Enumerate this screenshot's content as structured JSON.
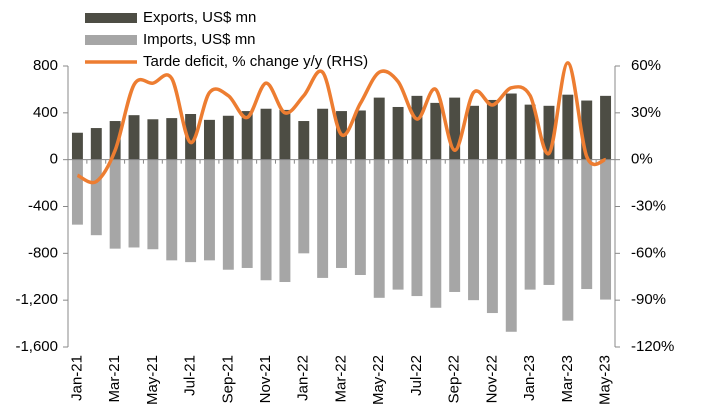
{
  "chart_data": {
    "type": "bar_line",
    "categories": [
      "Jan-21",
      null,
      "Mar-21",
      null,
      "May-21",
      null,
      "Jul-21",
      null,
      "Sep-21",
      null,
      "Nov-21",
      null,
      "Jan-22",
      null,
      "Mar-22",
      null,
      "May-22",
      null,
      "Jul-22",
      null,
      "Sep-22",
      null,
      "Nov-22",
      null,
      "Jan-23",
      null,
      "Mar-23",
      null,
      "May-23"
    ],
    "series": [
      {
        "name": "Exports, US$ mn",
        "color": "#4d4d44",
        "type": "bar",
        "values": [
          230,
          270,
          330,
          380,
          345,
          355,
          390,
          340,
          375,
          415,
          435,
          425,
          330,
          435,
          415,
          420,
          530,
          450,
          545,
          485,
          530,
          460,
          510,
          565,
          470,
          460,
          555,
          505,
          545
        ]
      },
      {
        "name": "Imports, US$ mn",
        "color": "#a6a6a6",
        "type": "bar",
        "values": [
          -555,
          -645,
          -760,
          -750,
          -765,
          -860,
          -875,
          -860,
          -940,
          -925,
          -1030,
          -1045,
          -800,
          -1010,
          -925,
          -985,
          -1180,
          -1110,
          -1165,
          -1265,
          -1130,
          -1200,
          -1310,
          -1470,
          -1110,
          -1070,
          -1375,
          -1105,
          -1195
        ]
      },
      {
        "name": "Tarde deficit, % change y/y (RHS)",
        "color": "#ed7d31",
        "type": "line",
        "axis": "y2",
        "values": [
          -10,
          -14,
          6,
          48,
          49,
          52,
          11,
          43,
          41,
          27,
          49,
          30,
          41,
          56,
          16,
          36,
          56,
          50,
          26,
          45,
          6,
          43,
          35,
          46,
          41,
          4,
          62,
          2,
          0
        ]
      }
    ],
    "ylim": [
      -1600,
      800
    ],
    "yticks": [
      {
        "value": -1600,
        "label": "-1,600"
      },
      {
        "value": -1200,
        "label": "-1,200"
      },
      -800,
      -400,
      0,
      400,
      800
    ],
    "y2lim": [
      -120,
      60
    ],
    "y2ticks": [
      {
        "value": -120,
        "label": "-120%"
      },
      {
        "value": -90,
        "label": "-90%"
      },
      {
        "value": -60,
        "label": "-60%"
      },
      {
        "value": -30,
        "label": "-30%"
      },
      {
        "value": 0,
        "label": "0%"
      },
      {
        "value": 30,
        "label": "30%"
      },
      {
        "value": 60,
        "label": "60%"
      }
    ],
    "legend": "top-left",
    "grid": false
  }
}
